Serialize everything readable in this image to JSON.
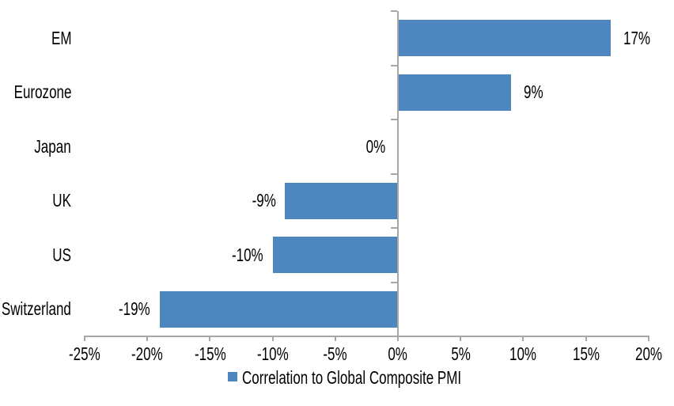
{
  "chart_data": {
    "type": "bar",
    "orientation": "horizontal",
    "categories": [
      "EM",
      "Eurozone",
      "Japan",
      "UK",
      "US",
      "Switzerland"
    ],
    "values": [
      17,
      9,
      0,
      -9,
      -10,
      -19
    ],
    "data_labels": [
      "17%",
      "9%",
      "0%",
      "-9%",
      "-10%",
      "-19%"
    ],
    "series": [
      {
        "name": "Correlation to Global Composite PMI",
        "values": [
          17,
          9,
          0,
          -9,
          -10,
          -19
        ]
      }
    ],
    "xlim": [
      -25,
      20
    ],
    "x_tick_values": [
      -25,
      -20,
      -15,
      -10,
      -5,
      0,
      5,
      10,
      15,
      20
    ],
    "x_tick_labels": [
      "-25%",
      "-20%",
      "-15%",
      "-10%",
      "-5%",
      "0%",
      "5%",
      "10%",
      "15%",
      "20%"
    ],
    "grid": false,
    "legend": {
      "label": "Correlation to Global Composite PMI",
      "position": "bottom-center"
    },
    "colors": {
      "bar": "#4E86BF",
      "axis": "#A6A6A6",
      "text": "#000000",
      "background": "#FFFFFF"
    }
  }
}
